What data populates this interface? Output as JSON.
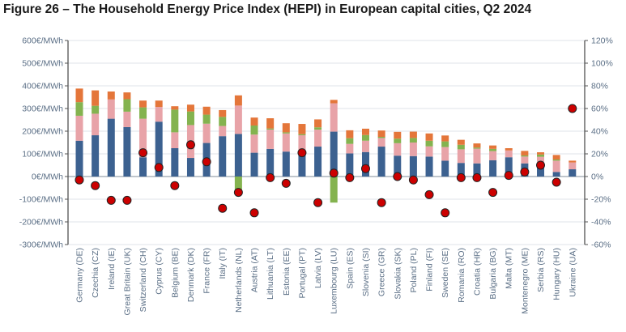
{
  "figure": {
    "title": "Figure 26 – The Household Energy Price Index (HEPI) in European capital cities, Q2 2024"
  },
  "chart_data": {
    "type": "bar",
    "stacked": true,
    "title": "Figure 26 – The Household Energy Price Index (HEPI) in European capital cities, Q2 2024",
    "categories": [
      "Germany (DE)",
      "Czechia (CZ)",
      "Ireland (IE)",
      "Great Britain (UK)",
      "Switzerland (CH)",
      "Cyprus (CY)",
      "Belgium (BE)",
      "Denmark (DK)",
      "France (FR)",
      "Italy (IT)",
      "Netherlands (NL)",
      "Austria (AT)",
      "Lithuania (LT)",
      "Estonia (EE)",
      "Portugal (PT)",
      "Latvia (LV)",
      "Luxembourg (LU)",
      "Spain (ES)",
      "Slovenia (SI)",
      "Greece (GR)",
      "Slovakia (SK)",
      "Poland (PL)",
      "Finland (FI)",
      "Sweden (SE)",
      "Romania (RO)",
      "Croatia (HR)",
      "Bulgaria (BG)",
      "Malta (MT)",
      "Montenegro (ME)",
      "Serbia (RS)",
      "Hungary (HU)",
      "Ukraine (UA)"
    ],
    "series": [
      {
        "color": "#3c6190",
        "axis": "left",
        "values": [
          158,
          182,
          255,
          218,
          85,
          242,
          125,
          82,
          148,
          178,
          188,
          105,
          122,
          110,
          112,
          132,
          198,
          102,
          108,
          132,
          92,
          90,
          88,
          70,
          60,
          58,
          72,
          85,
          58,
          42,
          20,
          32
        ]
      },
      {
        "color": "#e8a3a8",
        "axis": "left",
        "values": [
          110,
          95,
          85,
          68,
          170,
          65,
          70,
          145,
          85,
          45,
          125,
          80,
          85,
          80,
          70,
          75,
          125,
          42,
          50,
          38,
          55,
          60,
          45,
          60,
          60,
          65,
          40,
          30,
          30,
          45,
          50,
          30
        ]
      },
      {
        "color": "#84b34f",
        "axis": "left",
        "values": [
          60,
          35,
          0,
          55,
          50,
          0,
          100,
          60,
          40,
          40,
          -60,
          40,
          5,
          5,
          5,
          10,
          -115,
          25,
          25,
          5,
          20,
          20,
          25,
          25,
          20,
          5,
          10,
          0,
          5,
          10,
          5,
          0
        ]
      },
      {
        "color": "#e4763a",
        "axis": "left",
        "values": [
          60,
          68,
          35,
          30,
          30,
          28,
          15,
          30,
          35,
          30,
          45,
          35,
          45,
          40,
          45,
          35,
          15,
          35,
          28,
          28,
          30,
          28,
          32,
          26,
          22,
          18,
          15,
          10,
          20,
          10,
          20,
          8
        ]
      },
      {
        "color": "#cc0000",
        "axis": "right",
        "marker": "dot",
        "values": [
          -3,
          -8,
          -21,
          -21,
          21,
          8,
          -8,
          28,
          13,
          -28,
          -14,
          -32,
          -1,
          -6,
          21,
          -23,
          3,
          -1,
          7,
          -23,
          0,
          -3,
          -16,
          -32,
          -1,
          -1,
          -14,
          1,
          4,
          10,
          -5,
          60
        ]
      }
    ],
    "y_left": {
      "min": -300,
      "max": 600,
      "step": 100,
      "tick_suffix": "€/MWh"
    },
    "y_right": {
      "min": -60,
      "max": 120,
      "step": 20,
      "tick_suffix": "%"
    },
    "grid": "horizontal",
    "legend": "none"
  }
}
